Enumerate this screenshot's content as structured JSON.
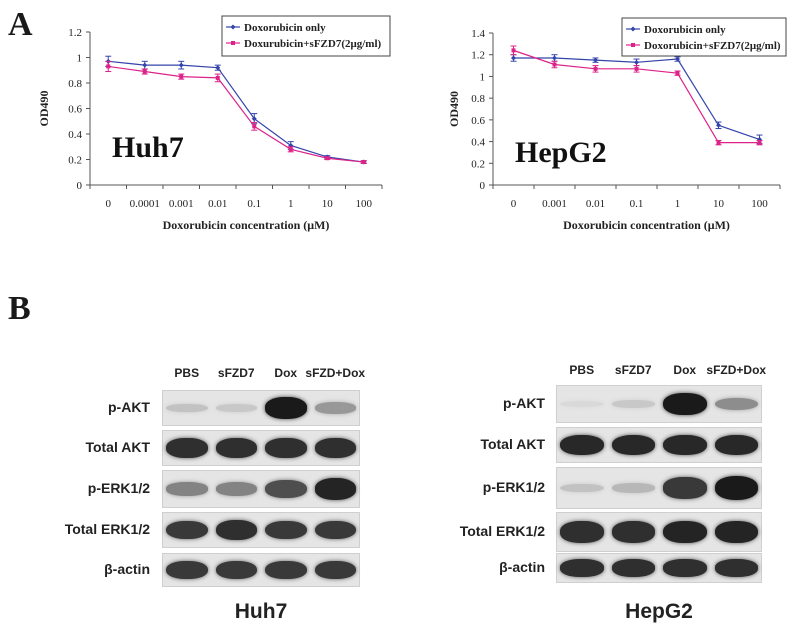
{
  "figure": {
    "panel_a_label": "A",
    "panel_b_label": "B"
  },
  "chart_data": [
    {
      "type": "line",
      "cell_line": "Huh7",
      "categories": [
        "0",
        "0.0001",
        "0.001",
        "0.01",
        "0.1",
        "1",
        "10",
        "100"
      ],
      "xlabel": "Doxorubicin concentration (μM)",
      "ylabel": "OD490",
      "ylim": [
        0,
        1.2
      ],
      "yticks": [
        "0",
        "0.2",
        "0.4",
        "0.6",
        "0.8",
        "1",
        "1.2"
      ],
      "grid": false,
      "legend_position": "top-right",
      "series": [
        {
          "name": "Doxorubicin only",
          "color": "#3344aa",
          "values": [
            0.97,
            0.94,
            0.94,
            0.92,
            0.52,
            0.31,
            0.22,
            0.18
          ],
          "errors": [
            0.04,
            0.03,
            0.03,
            0.02,
            0.04,
            0.03,
            0.01,
            0.01
          ]
        },
        {
          "name": "Doxurubicin+sFZD7(2μg/ml)",
          "color": "#dd2288",
          "values": [
            0.93,
            0.89,
            0.85,
            0.84,
            0.46,
            0.28,
            0.21,
            0.18
          ],
          "errors": [
            0.04,
            0.02,
            0.02,
            0.03,
            0.03,
            0.02,
            0.01,
            0.01
          ]
        }
      ]
    },
    {
      "type": "line",
      "cell_line": "HepG2",
      "categories": [
        "0",
        "0.001",
        "0.01",
        "0.1",
        "1",
        "10",
        "100"
      ],
      "xlabel": "Doxorubicin concentration (μM)",
      "ylabel": "OD490",
      "ylim": [
        0,
        1.4
      ],
      "yticks": [
        "0",
        "0.2",
        "0.4",
        "0.6",
        "0.8",
        "1",
        "1.2",
        "1.4"
      ],
      "grid": false,
      "legend_position": "top-right",
      "series": [
        {
          "name": "Doxorubicin only",
          "color": "#3344aa",
          "values": [
            1.17,
            1.17,
            1.15,
            1.13,
            1.16,
            0.55,
            0.42
          ],
          "errors": [
            0.03,
            0.03,
            0.02,
            0.03,
            0.02,
            0.03,
            0.04
          ]
        },
        {
          "name": "Doxorubicin+sFZD7(2μg/ml)",
          "color": "#dd2288",
          "values": [
            1.24,
            1.11,
            1.07,
            1.07,
            1.03,
            0.39,
            0.39
          ],
          "errors": [
            0.04,
            0.03,
            0.03,
            0.03,
            0.02,
            0.02,
            0.02
          ]
        }
      ]
    }
  ],
  "blots": [
    {
      "cell_line": "Huh7",
      "columns": [
        "PBS",
        "sFZD7",
        "Dox",
        "sFZD+Dox"
      ],
      "rows": [
        {
          "label": "p-AKT",
          "intensity": [
            0.15,
            0.12,
            0.95,
            0.35
          ]
        },
        {
          "label": "Total AKT",
          "intensity": [
            0.85,
            0.85,
            0.85,
            0.85
          ]
        },
        {
          "label": "p-ERK1/2",
          "intensity": [
            0.45,
            0.45,
            0.7,
            0.9
          ]
        },
        {
          "label": "Total ERK1/2",
          "intensity": [
            0.8,
            0.85,
            0.8,
            0.8
          ]
        },
        {
          "label": "β-actin",
          "intensity": [
            0.8,
            0.8,
            0.8,
            0.8
          ]
        }
      ]
    },
    {
      "cell_line": "HepG2",
      "columns": [
        "PBS",
        "sFZD7",
        "Dox",
        "sFZD+Dox"
      ],
      "rows": [
        {
          "label": "p-AKT",
          "intensity": [
            0.04,
            0.12,
            0.95,
            0.4
          ]
        },
        {
          "label": "Total AKT",
          "intensity": [
            0.88,
            0.88,
            0.88,
            0.88
          ]
        },
        {
          "label": "p-ERK1/2",
          "intensity": [
            0.15,
            0.2,
            0.8,
            0.95
          ]
        },
        {
          "label": "Total ERK1/2",
          "intensity": [
            0.85,
            0.85,
            0.9,
            0.9
          ]
        },
        {
          "label": "β-actin",
          "intensity": [
            0.85,
            0.85,
            0.85,
            0.85
          ]
        }
      ]
    }
  ]
}
